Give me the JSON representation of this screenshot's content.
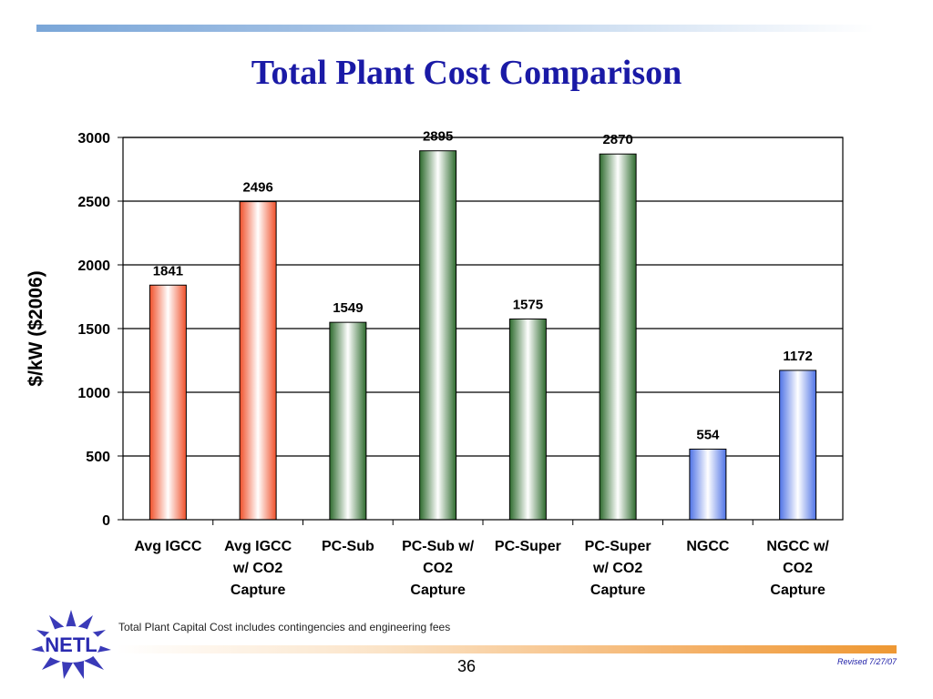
{
  "slide": {
    "title": "Total Plant Cost Comparison",
    "footnote": "Total Plant Capital Cost includes contingencies and engineering fees",
    "page_number": "36",
    "revised": "Revised 7/27/07",
    "logo_text": "NETL"
  },
  "colors": {
    "title": "#1a1aa6",
    "igcc": "#f0502a",
    "pc": "#2e6b2e",
    "ngcc": "#4f73e6"
  },
  "chart_data": {
    "type": "bar",
    "title": "",
    "xlabel": "",
    "ylabel": "$/kW ($2006)",
    "ylim": [
      0,
      3000
    ],
    "yticks": [
      0,
      500,
      1000,
      1500,
      2000,
      2500,
      3000
    ],
    "grid": true,
    "categories": [
      [
        "Avg IGCC"
      ],
      [
        "Avg IGCC",
        "w/ CO2",
        "Capture"
      ],
      [
        "PC-Sub"
      ],
      [
        "PC-Sub w/",
        "CO2",
        "Capture"
      ],
      [
        "PC-Super"
      ],
      [
        "PC-Super",
        "w/ CO2",
        "Capture"
      ],
      [
        "NGCC"
      ],
      [
        "NGCC w/",
        "CO2",
        "Capture"
      ]
    ],
    "values": [
      1841,
      2496,
      1549,
      2895,
      1575,
      2870,
      554,
      1172
    ],
    "bar_colors": [
      "igcc",
      "igcc",
      "pc",
      "pc",
      "pc",
      "pc",
      "ngcc",
      "ngcc"
    ]
  }
}
